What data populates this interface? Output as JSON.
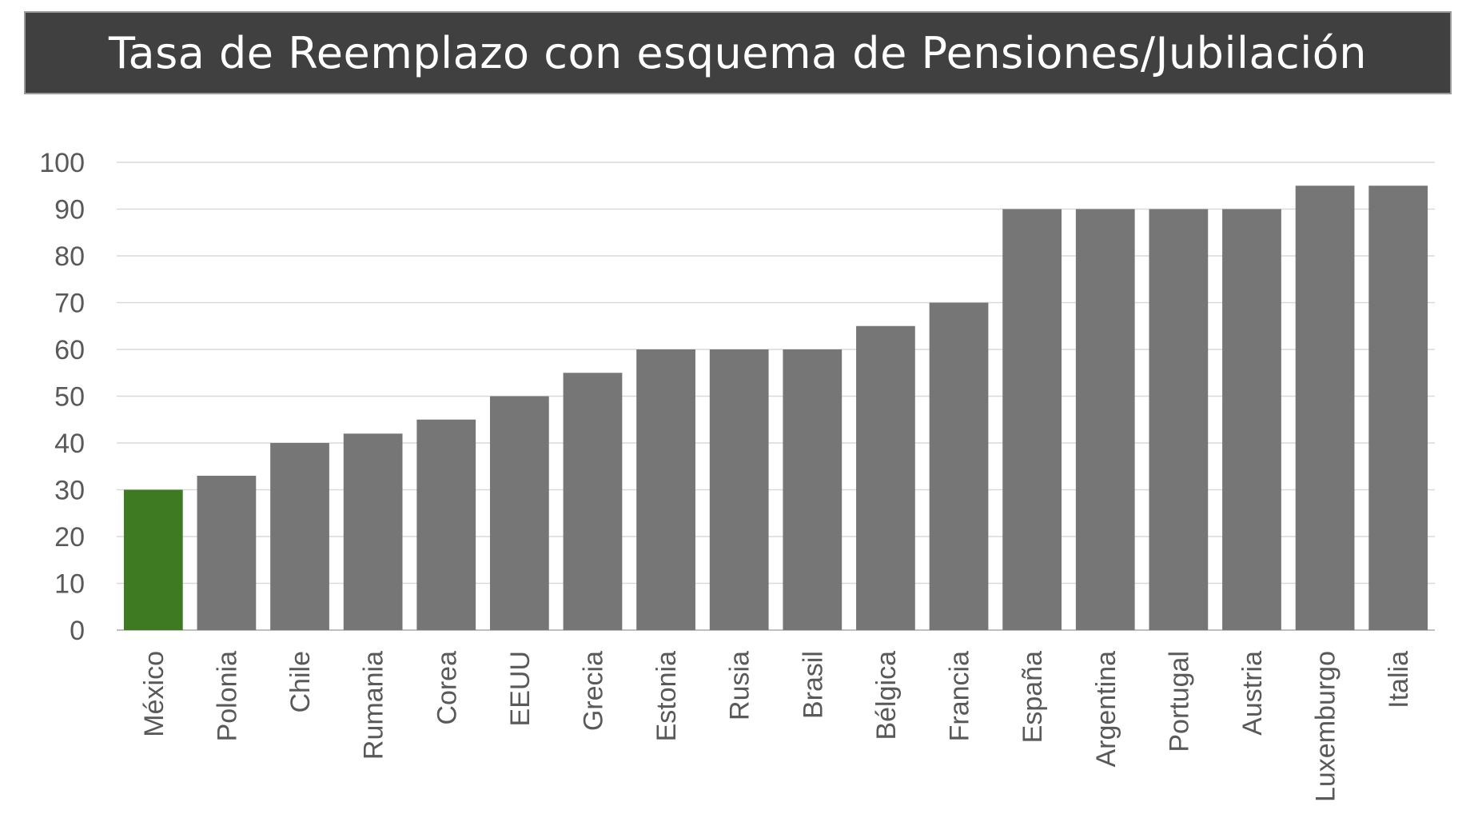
{
  "title": "Tasa de Reemplazo con esquema de Pensiones/Jubilación",
  "colors": {
    "title_bg": "#404040",
    "bar_default": "#767676",
    "bar_highlight": "#3d7a22",
    "grid": "#d9d9d9",
    "axis_text": "#595959"
  },
  "chart_data": {
    "type": "bar",
    "title": "Tasa de Reemplazo con esquema de Pensiones/Jubilación",
    "xlabel": "",
    "ylabel": "",
    "ylim": [
      0,
      100
    ],
    "yticks": [
      0,
      10,
      20,
      30,
      40,
      50,
      60,
      70,
      80,
      90,
      100
    ],
    "grid": true,
    "legend": "none",
    "highlight_category": "México",
    "categories": [
      "México",
      "Polonia",
      "Chile",
      "Rumania",
      "Corea",
      "EEUU",
      "Grecia",
      "Estonia",
      "Rusia",
      "Brasil",
      "Bélgica",
      "Francia",
      "España",
      "Argentina",
      "Portugal",
      "Austria",
      "Luxemburgo",
      "Italia"
    ],
    "values": [
      30,
      33,
      40,
      42,
      45,
      50,
      55,
      60,
      60,
      60,
      65,
      70,
      90,
      90,
      90,
      90,
      95,
      95
    ]
  }
}
